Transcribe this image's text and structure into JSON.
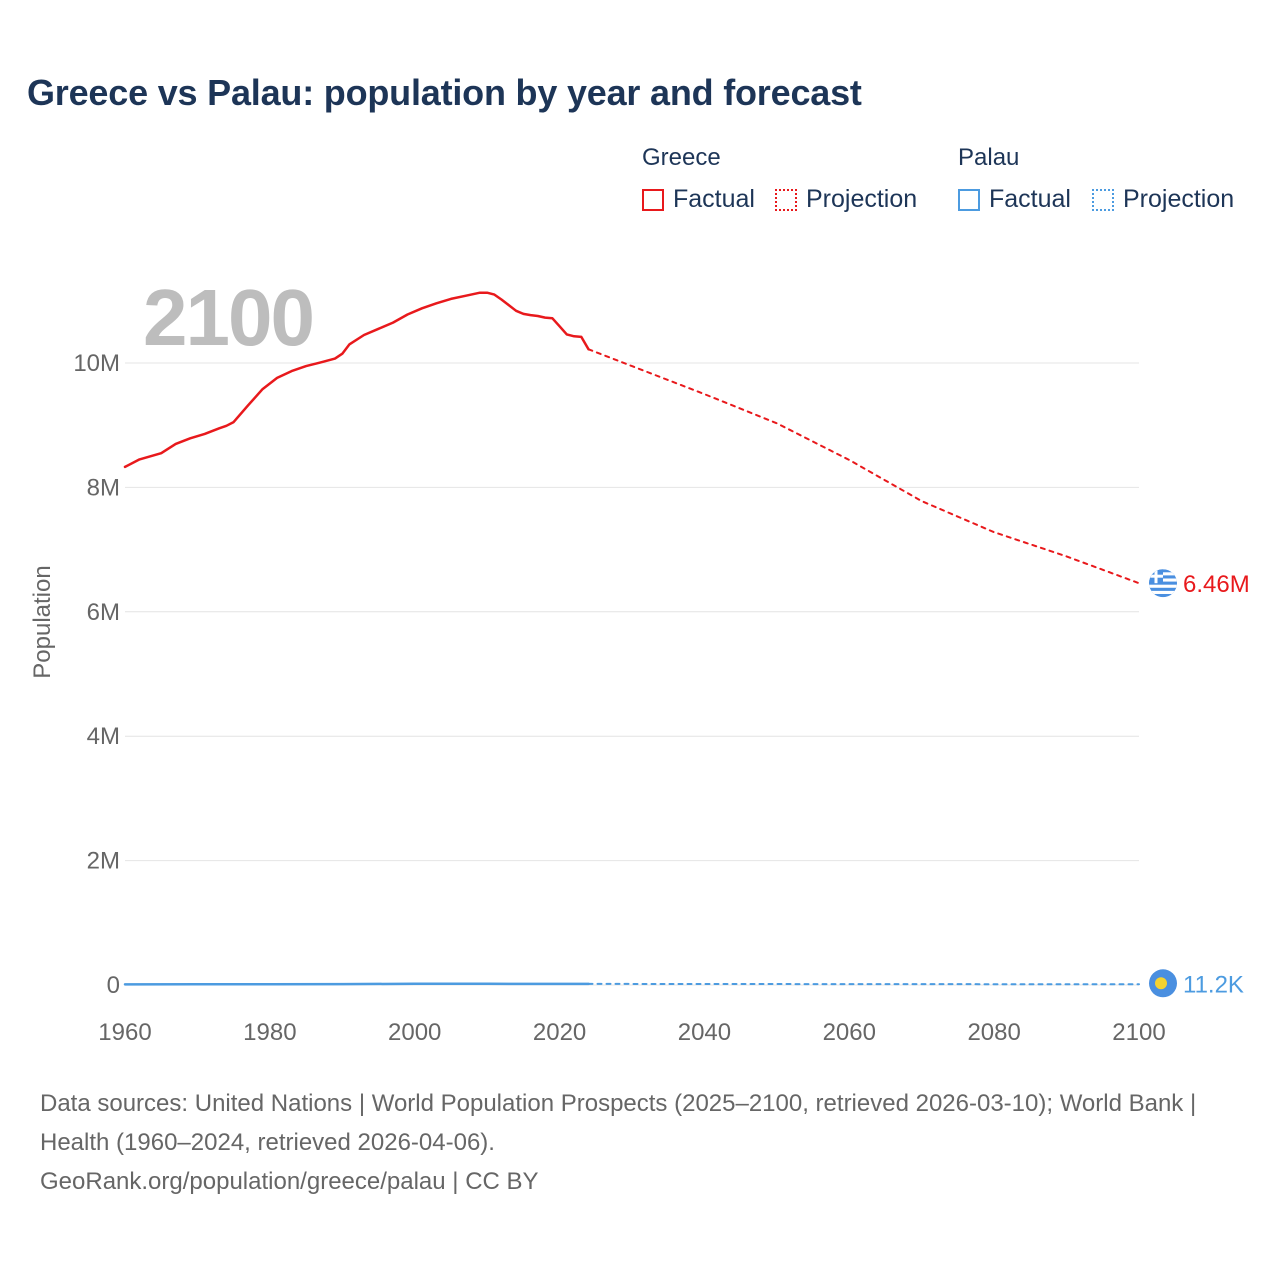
{
  "title": "Greece vs Palau: population by year and forecast",
  "legend": {
    "groups": [
      {
        "name": "Greece",
        "color": "#e8191c",
        "factual": "Factual",
        "projection": "Projection"
      },
      {
        "name": "Palau",
        "color": "#4c9be0",
        "factual": "Factual",
        "projection": "Projection"
      }
    ]
  },
  "year_overlay": "2100",
  "footer": {
    "sources": "Data sources: United Nations | World Population Prospects (2025–2100, retrieved 2026-03-10); World Bank | Health (1960–2024, retrieved 2026-04-06).",
    "credit": "GeoRank.org/population/greece/palau | CC BY"
  },
  "icons": {
    "greece_flag": "greece-flag-icon",
    "palau_flag": "palau-flag-icon"
  },
  "chart_data": {
    "type": "line",
    "title": "Greece vs Palau: population by year and forecast",
    "xlabel": "",
    "ylabel": "Population",
    "xlim": [
      1960,
      2100
    ],
    "ylim": [
      0,
      11500000
    ],
    "x_ticks": [
      1960,
      1980,
      2000,
      2020,
      2040,
      2060,
      2080,
      2100
    ],
    "x_tick_labels": [
      "1960",
      "1980",
      "2000",
      "2020",
      "2040",
      "2060",
      "2080",
      "2100"
    ],
    "y_ticks": [
      0,
      2000000,
      4000000,
      6000000,
      8000000,
      10000000
    ],
    "y_tick_labels": [
      "0",
      "2M",
      "4M",
      "6M",
      "8M",
      "10M"
    ],
    "series": [
      {
        "name": "Greece",
        "kind": "Factual",
        "color": "#e8191c",
        "style": "solid",
        "x": [
          1960,
          1962,
          1965,
          1967,
          1969,
          1971,
          1973,
          1974,
          1975,
          1977,
          1979,
          1981,
          1983,
          1985,
          1987,
          1989,
          1990,
          1991,
          1993,
          1995,
          1997,
          1999,
          2001,
          2003,
          2005,
          2007,
          2009,
          2010,
          2011,
          2012,
          2013,
          2014,
          2015,
          2016,
          2017,
          2018,
          2019,
          2020,
          2021,
          2022,
          2023,
          2024
        ],
        "values": [
          8330000,
          8450000,
          8550000,
          8700000,
          8790000,
          8860000,
          8950000,
          8990000,
          9050000,
          9320000,
          9580000,
          9760000,
          9870000,
          9950000,
          10010000,
          10070000,
          10150000,
          10300000,
          10450000,
          10550000,
          10650000,
          10780000,
          10880000,
          10960000,
          11030000,
          11080000,
          11130000,
          11130000,
          11100000,
          11020000,
          10930000,
          10840000,
          10790000,
          10770000,
          10755000,
          10730000,
          10720000,
          10590000,
          10460000,
          10430000,
          10420000,
          10220000
        ]
      },
      {
        "name": "Greece",
        "kind": "Projection",
        "color": "#e8191c",
        "style": "dotted",
        "x": [
          2024,
          2030,
          2040,
          2050,
          2060,
          2070,
          2080,
          2090,
          2100
        ],
        "values": [
          10220000,
          9950000,
          9500000,
          9030000,
          8440000,
          7780000,
          7280000,
          6890000,
          6460000
        ]
      },
      {
        "name": "Palau",
        "kind": "Factual",
        "color": "#4c9be0",
        "style": "solid",
        "x": [
          1960,
          1970,
          1980,
          1990,
          2000,
          2010,
          2020,
          2024
        ],
        "values": [
          9600,
          11500,
          12200,
          15100,
          19100,
          18500,
          18000,
          17700
        ]
      },
      {
        "name": "Palau",
        "kind": "Projection",
        "color": "#4c9be0",
        "style": "dotted",
        "x": [
          2024,
          2040,
          2060,
          2080,
          2100
        ],
        "values": [
          17700,
          16300,
          14600,
          12900,
          11200
        ]
      }
    ],
    "end_labels": [
      {
        "name": "Greece",
        "text": "6.46M",
        "value": 6460000,
        "color": "#e8191c",
        "icon": "greece-flag-icon"
      },
      {
        "name": "Palau",
        "text": "11.2K",
        "value": 11200,
        "color": "#4c9be0",
        "icon": "palau-flag-icon"
      }
    ]
  }
}
